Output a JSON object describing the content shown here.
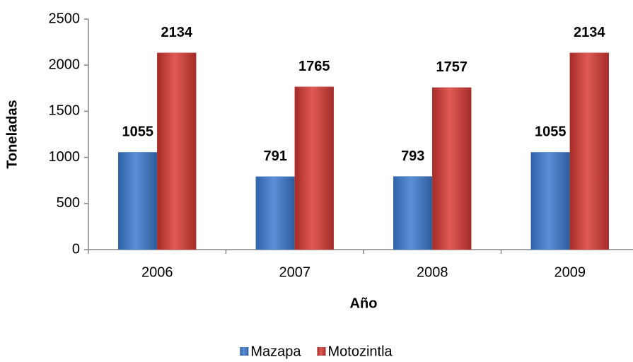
{
  "chart_data": {
    "type": "bar",
    "categories": [
      "2006",
      "2007",
      "2008",
      "2009"
    ],
    "series": [
      {
        "name": "Mazapa",
        "color": "#4a7ebb",
        "values": [
          1055,
          791,
          793,
          1055
        ]
      },
      {
        "name": "Motozintla",
        "color": "#c0504d",
        "values": [
          2134,
          1765,
          1757,
          2134
        ]
      }
    ],
    "x_label": "Año",
    "y_label": "Toneladas",
    "ylim": [
      0,
      2500
    ],
    "yticks": [
      0,
      500,
      1000,
      1500,
      2000,
      2500
    ],
    "legend": "bottom",
    "grid": false
  }
}
